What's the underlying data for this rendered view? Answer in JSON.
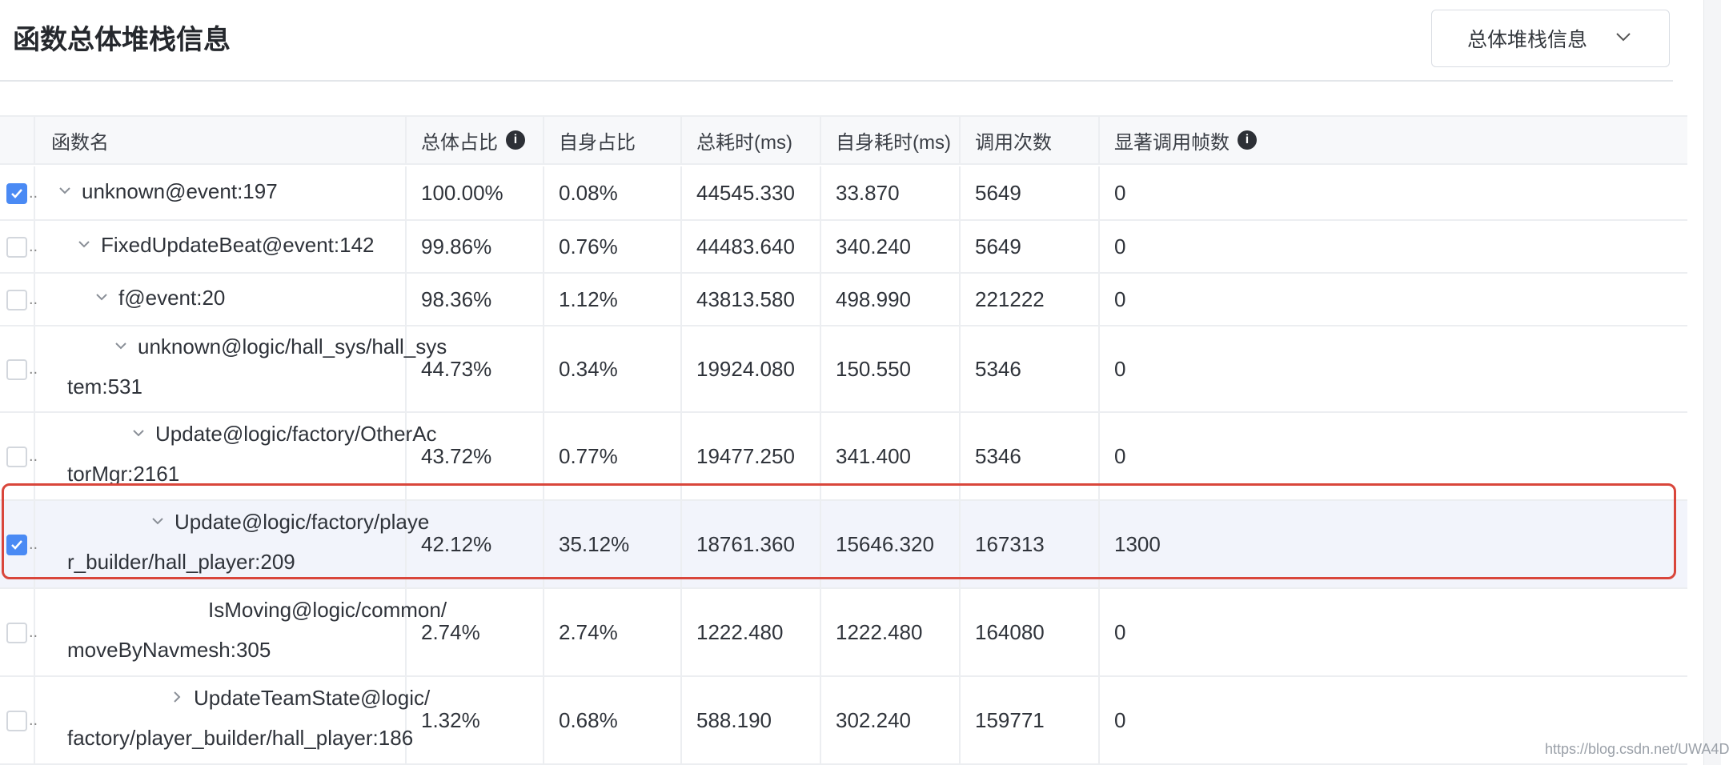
{
  "header": {
    "title": "函数总体堆栈信息",
    "view_select": {
      "value": "总体堆栈信息"
    }
  },
  "table": {
    "columns": [
      "函数名",
      "总体占比",
      "自身占比",
      "总耗时(ms)",
      "自身耗时(ms)",
      "调用次数",
      "显著调用帧数"
    ],
    "rows": [
      {
        "checked": true,
        "toggle": "expanded",
        "name1": "unknown@event:197",
        "name2": "",
        "total_pct": "100.00%",
        "self_pct": "0.08%",
        "total_ms": "44545.330",
        "self_ms": "33.870",
        "calls": "5649",
        "frames": "0"
      },
      {
        "checked": false,
        "toggle": "expanded",
        "name1": "FixedUpdateBeat@event:142",
        "name2": "",
        "total_pct": "99.86%",
        "self_pct": "0.76%",
        "total_ms": "44483.640",
        "self_ms": "340.240",
        "calls": "5649",
        "frames": "0"
      },
      {
        "checked": false,
        "toggle": "expanded",
        "name1": "f@event:20",
        "name2": "",
        "total_pct": "98.36%",
        "self_pct": "1.12%",
        "total_ms": "43813.580",
        "self_ms": "498.990",
        "calls": "221222",
        "frames": "0"
      },
      {
        "checked": false,
        "toggle": "expanded",
        "name1": "unknown@logic/hall_sys/hall_sys",
        "name2": "tem:531",
        "total_pct": "44.73%",
        "self_pct": "0.34%",
        "total_ms": "19924.080",
        "self_ms": "150.550",
        "calls": "5346",
        "frames": "0"
      },
      {
        "checked": false,
        "toggle": "expanded",
        "name1": "Update@logic/factory/OtherAc",
        "name2": "torMgr:2161",
        "total_pct": "43.72%",
        "self_pct": "0.77%",
        "total_ms": "19477.250",
        "self_ms": "341.400",
        "calls": "5346",
        "frames": "0"
      },
      {
        "checked": true,
        "toggle": "expanded",
        "name1": "Update@logic/factory/playe",
        "name2": "r_builder/hall_player:209",
        "total_pct": "42.12%",
        "self_pct": "35.12%",
        "total_ms": "18761.360",
        "self_ms": "15646.320",
        "calls": "167313",
        "frames": "1300",
        "highlighted": true
      },
      {
        "checked": false,
        "toggle": "none",
        "name1": "IsMoving@logic/common/",
        "name2": "moveByNavmesh:305",
        "total_pct": "2.74%",
        "self_pct": "2.74%",
        "total_ms": "1222.480",
        "self_ms": "1222.480",
        "calls": "164080",
        "frames": "0"
      },
      {
        "checked": false,
        "toggle": "collapsed",
        "name1": "UpdateTeamState@logic/",
        "name2": "factory/player_builder/hall_player:186",
        "total_pct": "1.32%",
        "self_pct": "0.68%",
        "total_ms": "588.190",
        "self_ms": "302.240",
        "calls": "159771",
        "frames": "0"
      }
    ]
  },
  "watermark": "https://blog.csdn.net/UWA4D",
  "colors": {
    "accent": "#4a8af4",
    "highlight_border": "#d9463b",
    "highlight_bg": "#f2f4fb"
  }
}
